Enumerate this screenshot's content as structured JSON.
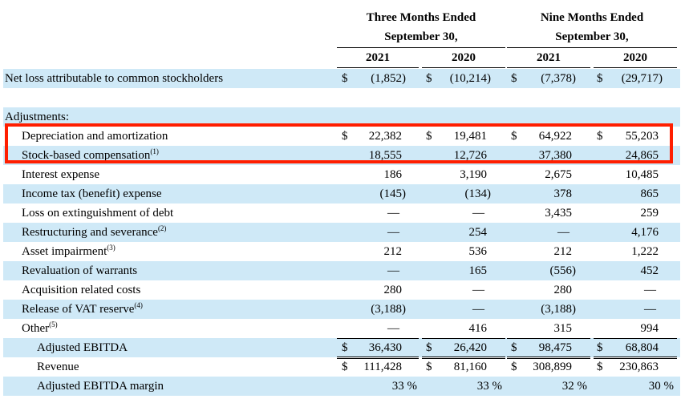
{
  "header": {
    "group1": [
      "Three Months Ended",
      "September 30,"
    ],
    "group2": [
      "Nine Months Ended",
      "September 30,"
    ],
    "years": [
      "2021",
      "2020",
      "2021",
      "2020"
    ]
  },
  "rows": [
    {
      "label": "Net loss attributable to common stockholders",
      "sup": "",
      "indent": 0,
      "shade": true,
      "dollar": true,
      "values": [
        "(1,852)",
        "(10,214)",
        "(7,378)",
        "(29,717)"
      ]
    },
    {
      "label": "",
      "sup": "",
      "indent": 0,
      "shade": false,
      "dollar": false,
      "values": [
        "",
        "",
        "",
        ""
      ]
    },
    {
      "label": "Adjustments:",
      "sup": "",
      "indent": 0,
      "shade": true,
      "dollar": false,
      "values": [
        "",
        "",
        "",
        ""
      ]
    },
    {
      "label": "Depreciation and amortization",
      "sup": "",
      "indent": 1,
      "shade": false,
      "dollar": true,
      "values": [
        "22,382",
        "19,481",
        "64,922",
        "55,203"
      ]
    },
    {
      "label": "Stock-based compensation",
      "sup": "(1)",
      "indent": 1,
      "shade": true,
      "dollar": false,
      "values": [
        "18,555",
        "12,726",
        "37,380",
        "24,865"
      ]
    },
    {
      "label": "Interest expense",
      "sup": "",
      "indent": 1,
      "shade": false,
      "dollar": false,
      "values": [
        "186",
        "3,190",
        "2,675",
        "10,485"
      ]
    },
    {
      "label": "Income tax (benefit) expense",
      "sup": "",
      "indent": 1,
      "shade": true,
      "dollar": false,
      "values": [
        "(145)",
        "(134)",
        "378",
        "865"
      ]
    },
    {
      "label": "Loss on extinguishment of debt",
      "sup": "",
      "indent": 1,
      "shade": false,
      "dollar": false,
      "values": [
        "—",
        "—",
        "3,435",
        "259"
      ]
    },
    {
      "label": "Restructuring and severance",
      "sup": "(2)",
      "indent": 1,
      "shade": true,
      "dollar": false,
      "values": [
        "—",
        "254",
        "—",
        "4,176"
      ]
    },
    {
      "label": "Asset impairment",
      "sup": "(3)",
      "indent": 1,
      "shade": false,
      "dollar": false,
      "values": [
        "212",
        "536",
        "212",
        "1,222"
      ]
    },
    {
      "label": "Revaluation of warrants",
      "sup": "",
      "indent": 1,
      "shade": true,
      "dollar": false,
      "values": [
        "—",
        "165",
        "(556)",
        "452"
      ]
    },
    {
      "label": "Acquisition related costs",
      "sup": "",
      "indent": 1,
      "shade": false,
      "dollar": false,
      "values": [
        "280",
        "—",
        "280",
        "—"
      ]
    },
    {
      "label": "Release of VAT reserve",
      "sup": "(4)",
      "indent": 1,
      "shade": true,
      "dollar": false,
      "values": [
        "(3,188)",
        "—",
        "(3,188)",
        "—"
      ]
    },
    {
      "label": "Other",
      "sup": "(5)",
      "indent": 1,
      "shade": false,
      "dollar": false,
      "values": [
        "—",
        "416",
        "315",
        "994"
      ]
    },
    {
      "label": "Adjusted EBITDA",
      "sup": "",
      "indent": 2,
      "shade": true,
      "dollar": true,
      "values": [
        "36,430",
        "26,420",
        "98,475",
        "68,804"
      ]
    },
    {
      "label": "Revenue",
      "sup": "",
      "indent": 2,
      "shade": false,
      "dollar": true,
      "values": [
        "111,428",
        "81,160",
        "308,899",
        "230,863"
      ]
    },
    {
      "label": "Adjusted EBITDA margin",
      "sup": "",
      "indent": 2,
      "shade": true,
      "dollar": false,
      "values": [
        "33 %",
        "33 %",
        "32 %",
        "30 %"
      ]
    }
  ],
  "currency_symbol": "$",
  "highlight_color": "#ff1e00",
  "shade_color": "#cfe9f7"
}
